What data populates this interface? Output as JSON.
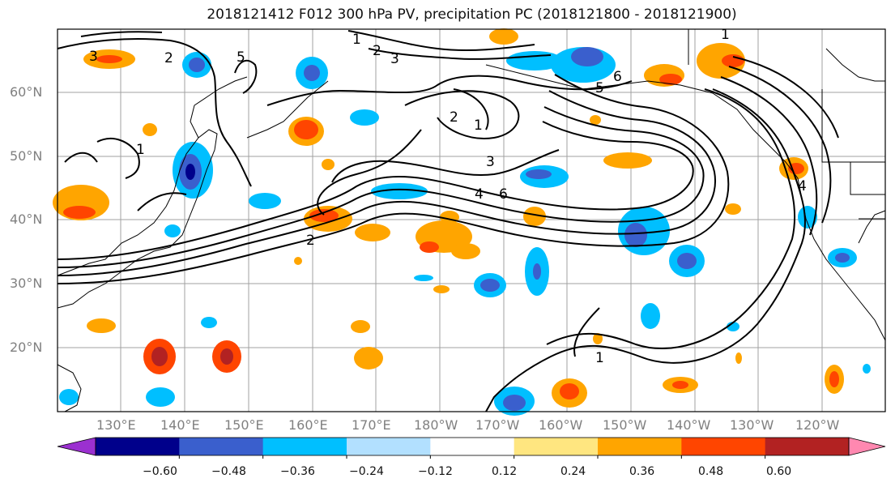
{
  "title": "2018121412 F012 300 hPa PV, precipitation PC (2018121800 - 2018121900)",
  "lat_labels": [
    "60°N",
    "50°N",
    "40°N",
    "30°N",
    "20°N"
  ],
  "lon_labels": [
    "130°E",
    "140°E",
    "150°E",
    "160°E",
    "170°E",
    "180°W",
    "170°W",
    "160°W",
    "150°W",
    "140°W",
    "130°W",
    "120°W"
  ],
  "contour_labels": [
    "1",
    "2",
    "3",
    "5",
    "2",
    "1",
    "3",
    "5",
    "6",
    "4",
    "6",
    "2",
    "1",
    "4",
    "1",
    "1",
    "2",
    "3"
  ],
  "colorbar": {
    "ticks": [
      "−0.60",
      "−0.48",
      "−0.36",
      "−0.24",
      "−0.12",
      "0.12",
      "0.24",
      "0.36",
      "0.48",
      "0.60"
    ],
    "colors": [
      "#9b30d0",
      "#00008b",
      "#3a5fcd",
      "#00bfff",
      "#b2e0ff",
      "#ffffff",
      "#ffe680",
      "#ffa500",
      "#ff4500",
      "#b22222",
      "#ff88b0"
    ]
  }
}
